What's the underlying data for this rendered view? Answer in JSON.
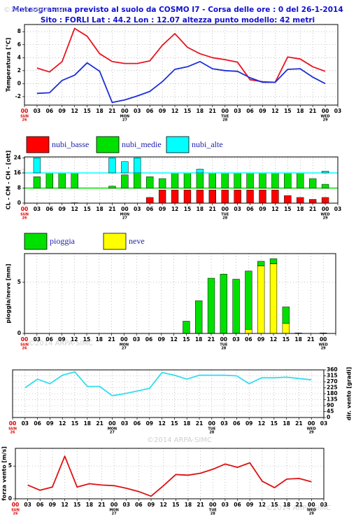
{
  "watermark": "©2014 ARPA-SIMC",
  "days": [
    {
      "name": "SUN",
      "date": "26"
    },
    {
      "name": "MON",
      "date": "27"
    },
    {
      "name": "TUE",
      "date": "28"
    },
    {
      "name": "WED",
      "date": "29"
    }
  ],
  "chart_data": [
    {
      "type": "line",
      "title": "Meteogramma previsto al suolo da COSMO I7 - Corsa delle ore : 0 del 26-1-2014",
      "subtitle": "Sito : FORLI Lat : 44.2 Lon : 12.07 altezza punto modello: 42 metri",
      "ylabel": "Temperatura [°C]",
      "categories": [
        "00",
        "03",
        "06",
        "09",
        "12",
        "15",
        "18",
        "21",
        "00",
        "03",
        "06",
        "09",
        "12",
        "15",
        "18",
        "21",
        "00",
        "03",
        "06",
        "09",
        "12",
        "15",
        "18",
        "21",
        "00",
        "03"
      ],
      "series": [
        {
          "color": "#e8141e",
          "values": [
            null,
            2.4,
            1.8,
            3.4,
            8.5,
            7.3,
            4.6,
            3.4,
            3.1,
            3.1,
            3.5,
            5.9,
            7.7,
            5.6,
            4.6,
            4.0,
            3.7,
            3.3,
            0.6,
            0.3,
            0.2,
            4.1,
            3.8,
            2.6,
            1.9,
            null
          ]
        },
        {
          "color": "#1c2fd8",
          "values": [
            null,
            -1.5,
            -1.4,
            0.5,
            1.3,
            3.2,
            1.9,
            -2.9,
            -2.5,
            -1.9,
            -1.2,
            0.3,
            2.2,
            2.6,
            3.4,
            2.3,
            2.0,
            1.9,
            0.9,
            0.2,
            0.2,
            2.2,
            2.3,
            1.0,
            0.0,
            null
          ]
        }
      ],
      "ylim": [
        -3.3,
        9.1
      ],
      "yticks": [
        -2,
        0,
        2,
        4,
        6,
        8
      ],
      "grid": true
    },
    {
      "type": "bar",
      "bar_mode": "banded",
      "ylabel": "CL - CM - CH - [ott]",
      "categories": [
        "00",
        "03",
        "06",
        "09",
        "12",
        "15",
        "18",
        "21",
        "00",
        "03",
        "06",
        "09",
        "12",
        "15",
        "18",
        "21",
        "00",
        "03",
        "06",
        "09",
        "12",
        "15",
        "18",
        "21",
        "00",
        "03"
      ],
      "series": [
        {
          "name": "nubi_basse",
          "color": "#ff0000",
          "values": [
            null,
            0,
            0,
            0,
            0.2,
            0,
            0,
            0,
            0,
            0,
            3,
            7,
            7,
            7,
            7,
            7,
            7,
            7,
            7,
            7,
            7,
            4,
            3,
            2,
            3,
            null
          ]
        },
        {
          "name": "nubi_medie",
          "color": "#00e000",
          "values": [
            null,
            6,
            8,
            8,
            8,
            0,
            0,
            1,
            7,
            8,
            6,
            5,
            8,
            8,
            8,
            8,
            8,
            8,
            8,
            8,
            8,
            8,
            8,
            5,
            2,
            null
          ]
        },
        {
          "name": "nubi_alte",
          "color": "#00ffff",
          "values": [
            null,
            8,
            0,
            0,
            0,
            0,
            0,
            8,
            6,
            8,
            0,
            0,
            0,
            0,
            2,
            0,
            0,
            0,
            0,
            0,
            0,
            0,
            0,
            0,
            1,
            null
          ]
        }
      ],
      "ylim": [
        0,
        24.5
      ],
      "yticks": [
        0,
        8,
        16,
        24
      ],
      "grid": true,
      "legend": "top-left"
    },
    {
      "type": "bar",
      "bar_mode": "stacked",
      "ylabel": "pioggia/neve [mm]",
      "categories": [
        "00",
        "03",
        "06",
        "09",
        "12",
        "15",
        "18",
        "21",
        "00",
        "03",
        "06",
        "09",
        "12",
        "15",
        "18",
        "21",
        "00",
        "03",
        "06",
        "09",
        "12",
        "15",
        "18",
        "21",
        "00",
        null
      ],
      "series": [
        {
          "name": "pioggia",
          "color": "#00e000",
          "values": [
            null,
            0,
            0,
            0,
            0,
            0,
            0,
            0,
            0,
            0,
            0,
            0,
            0,
            1.2,
            3.2,
            5.4,
            5.8,
            5.3,
            5.7,
            0.45,
            0.5,
            1.6,
            0.05,
            0,
            0.05,
            null
          ]
        },
        {
          "name": "neve",
          "color": "#ffff00",
          "values": [
            null,
            0,
            0,
            0,
            0,
            0,
            0,
            0,
            0,
            0,
            0,
            0,
            0,
            0,
            0,
            0,
            0,
            0,
            0.4,
            6.6,
            6.8,
            1.0,
            0,
            0,
            0,
            null
          ]
        }
      ],
      "ylim": [
        0,
        7.8
      ],
      "yticks": [
        0,
        5
      ],
      "grid": true,
      "legend": "top-left"
    },
    {
      "type": "line",
      "ylabel": "dir. vento [gradi]",
      "categories": [
        "00",
        "03",
        "06",
        "09",
        "12",
        "15",
        "18",
        "21",
        "00",
        "03",
        "06",
        "09",
        "12",
        "15",
        "18",
        "21",
        "00",
        "03",
        "06",
        "09",
        "12",
        "15",
        "18",
        "21",
        "00",
        "03"
      ],
      "series": [
        {
          "color": "#33ddee",
          "values": [
            null,
            225,
            290,
            255,
            320,
            345,
            235,
            235,
            165,
            180,
            200,
            220,
            340,
            320,
            290,
            320,
            320,
            320,
            315,
            255,
            300,
            300,
            305,
            295,
            285,
            null
          ]
        }
      ],
      "ylim": [
        0,
        360
      ],
      "yticks": [
        0,
        45,
        90,
        135,
        180,
        225,
        270,
        315,
        360
      ],
      "yaxis_side": "right",
      "grid": true
    },
    {
      "type": "line",
      "ylabel": "forza vento [m/s]",
      "categories": [
        "00",
        "03",
        "06",
        "09",
        "12",
        "15",
        "18",
        "21",
        "00",
        "03",
        "06",
        "09",
        "12",
        "15",
        "18",
        "21",
        "00",
        "03",
        "06",
        "09",
        "12",
        "15",
        "18",
        "21",
        "00",
        "03"
      ],
      "series": [
        {
          "color": "#dd1111",
          "values": [
            null,
            2.1,
            1.3,
            1.8,
            6.5,
            1.8,
            2.3,
            2.1,
            2.0,
            1.6,
            1.1,
            0.4,
            2.0,
            3.7,
            3.6,
            3.9,
            4.5,
            5.3,
            4.8,
            5.5,
            2.7,
            1.7,
            3.0,
            3.1,
            2.6,
            null
          ]
        }
      ],
      "ylim": [
        0,
        7.7
      ],
      "yticks": [
        0,
        5
      ],
      "grid": true
    }
  ]
}
